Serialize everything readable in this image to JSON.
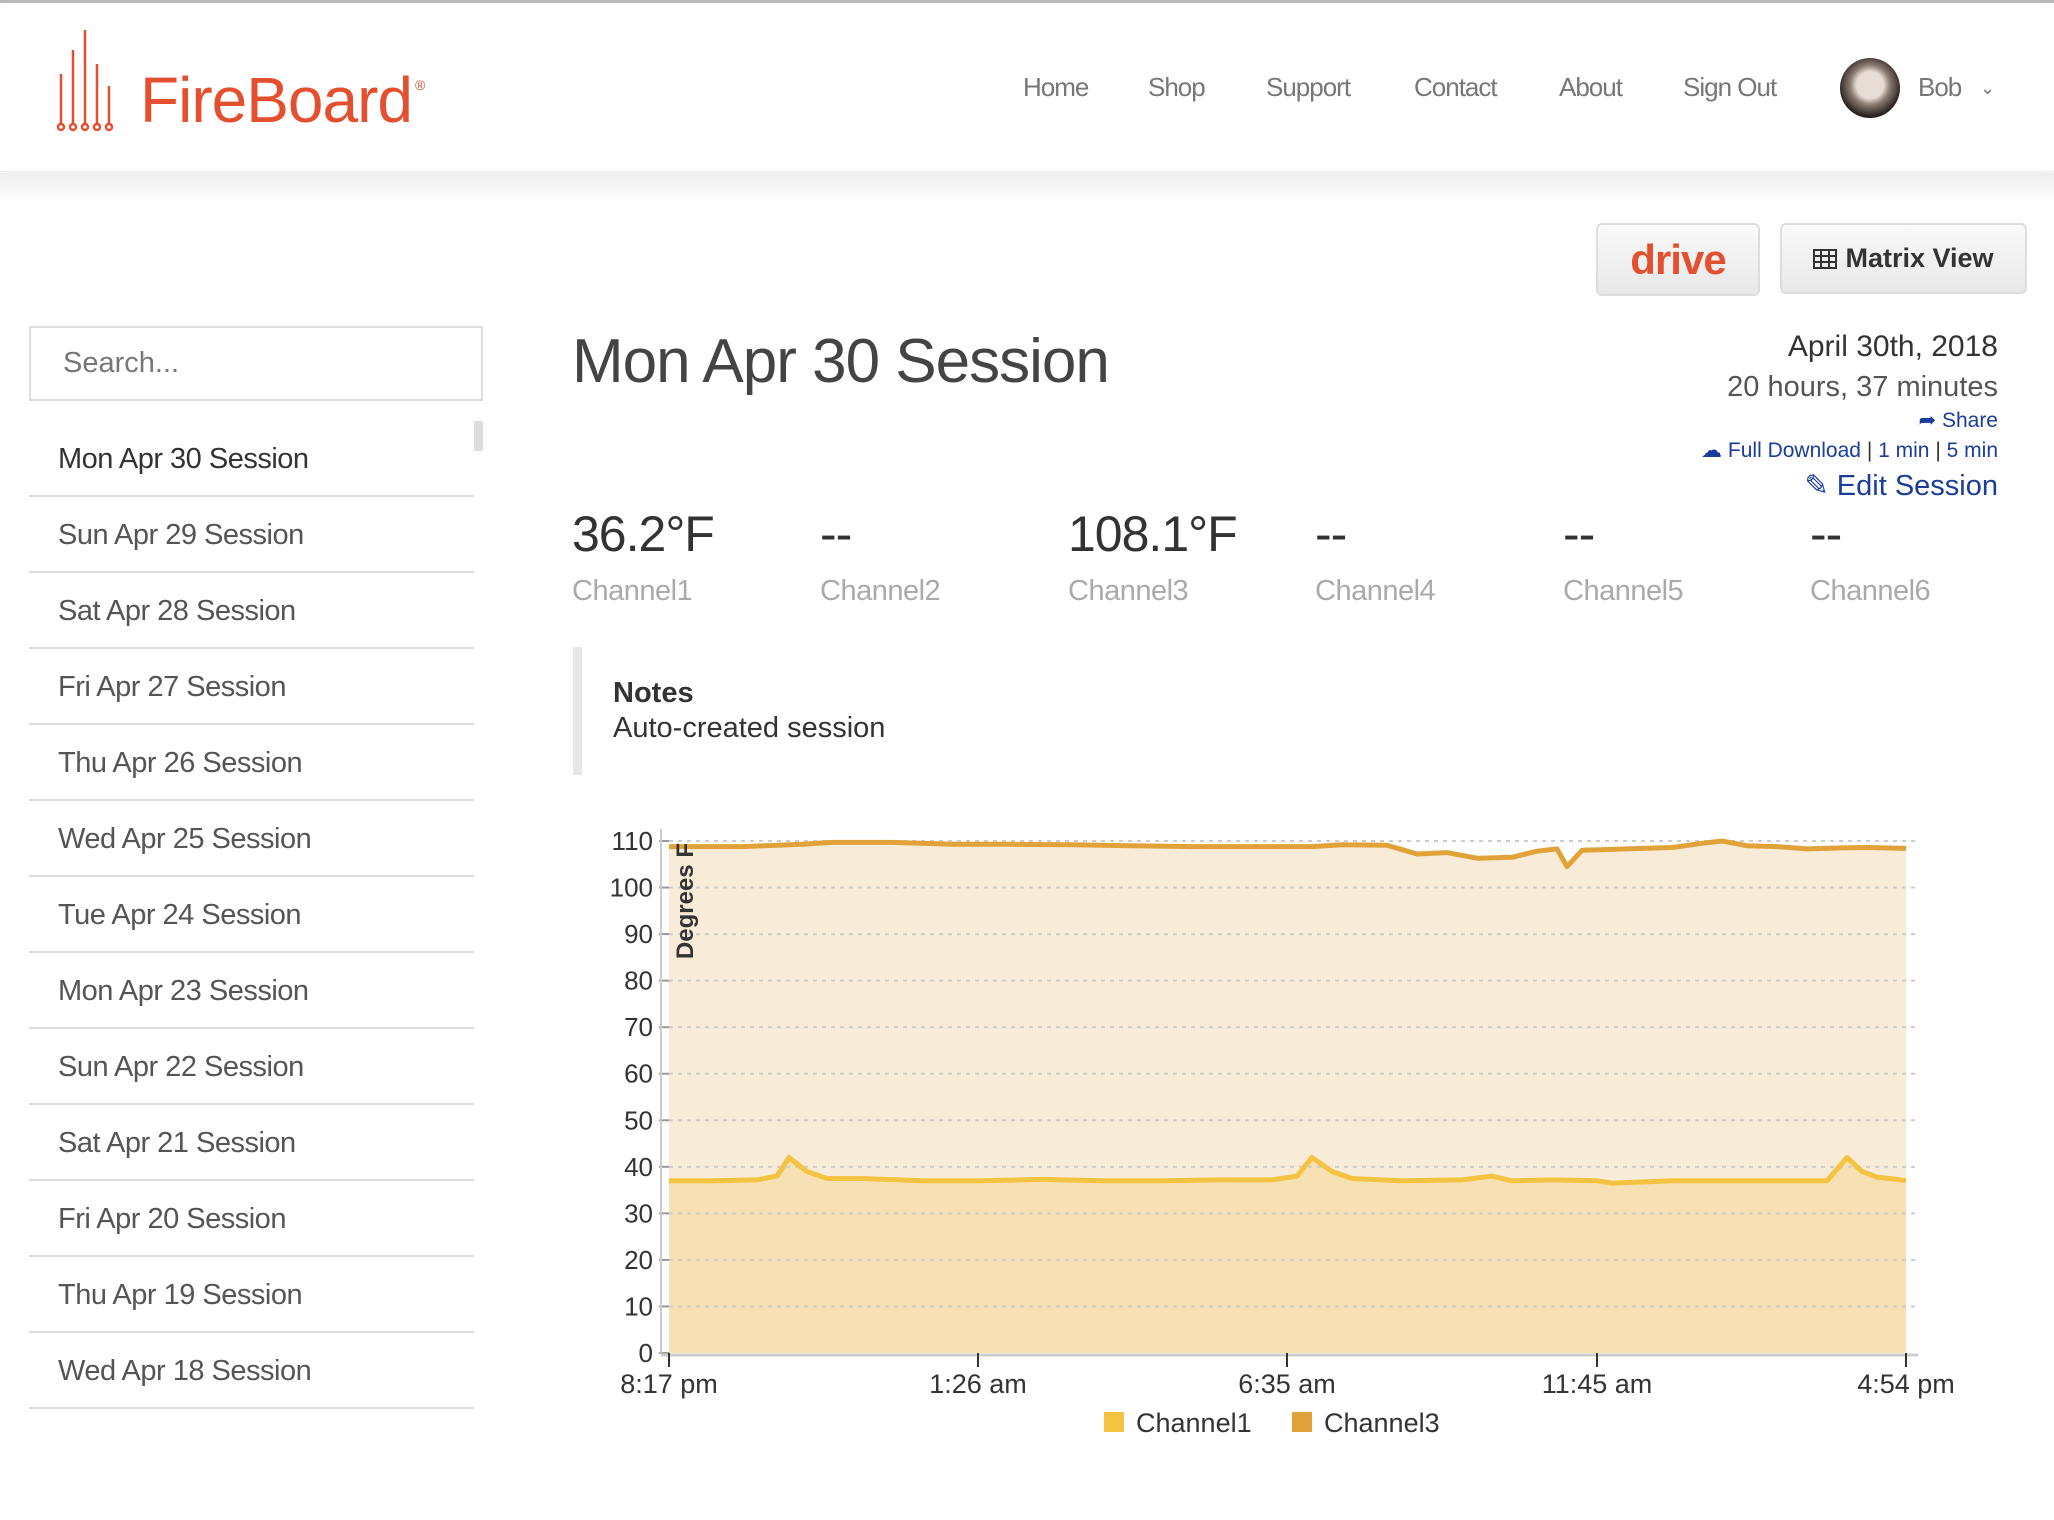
{
  "brand": {
    "name": "FireBoard",
    "registered": "®",
    "color": "#e4502f"
  },
  "nav": {
    "items": [
      "Home",
      "Shop",
      "Support",
      "Contact",
      "About",
      "Sign Out"
    ],
    "user": "Bob"
  },
  "toolbar": {
    "drive_label": "drive",
    "matrix_label": "Matrix View"
  },
  "sidebar": {
    "search_placeholder": "Search...",
    "items": [
      "Mon Apr 30 Session",
      "Sun Apr 29 Session",
      "Sat Apr 28 Session",
      "Fri Apr 27 Session",
      "Thu Apr 26 Session",
      "Wed Apr 25 Session",
      "Tue Apr 24 Session",
      "Mon Apr 23 Session",
      "Sun Apr 22 Session",
      "Sat Apr 21 Session",
      "Fri Apr 20 Session",
      "Thu Apr 19 Session",
      "Wed Apr 18 Session"
    ],
    "active": 0
  },
  "session": {
    "title": "Mon Apr 30 Session",
    "date": "April 30th, 2018",
    "duration": "20 hours, 37 minutes",
    "share": "Share",
    "full_download": "Full Download",
    "sep": "|",
    "one_min": "1 min",
    "five_min": "5 min",
    "edit": "Edit Session",
    "channels": [
      {
        "value": "36.2°F",
        "label": "Channel1"
      },
      {
        "value": "--",
        "label": "Channel2"
      },
      {
        "value": "108.1°F",
        "label": "Channel3"
      },
      {
        "value": "--",
        "label": "Channel4"
      },
      {
        "value": "--",
        "label": "Channel5"
      },
      {
        "value": "--",
        "label": "Channel6"
      }
    ],
    "notes_title": "Notes",
    "notes_text": "Auto-created session"
  },
  "chart_data": {
    "type": "area",
    "ylabel": "Degrees F",
    "ylim": [
      0,
      110
    ],
    "yticks": [
      0,
      10,
      20,
      30,
      40,
      50,
      60,
      70,
      80,
      90,
      100,
      110
    ],
    "xticks": [
      "8:17 pm",
      "1:26 am",
      "6:35 am",
      "11:45 am",
      "4:54 pm"
    ],
    "grid": true,
    "legend": "bottom",
    "series": [
      {
        "name": "Channel1",
        "color": "#f5c342",
        "fill": "#f8e0b5",
        "points": [
          [
            "8:17 pm",
            37
          ],
          [
            "9:00 pm",
            37
          ],
          [
            "9:45 pm",
            37.2
          ],
          [
            "10:05 pm",
            38
          ],
          [
            "10:17 pm",
            42
          ],
          [
            "10:35 pm",
            39
          ],
          [
            "10:55 pm",
            37.5
          ],
          [
            "11:30 pm",
            37.5
          ],
          [
            "12:30 am",
            37
          ],
          [
            "1:30 am",
            37
          ],
          [
            "2:30 am",
            37.3
          ],
          [
            "3:30 am",
            37
          ],
          [
            "4:30 am",
            37
          ],
          [
            "5:30 am",
            37.2
          ],
          [
            "6:20 am",
            37.2
          ],
          [
            "6:45 am",
            38
          ],
          [
            "7:00 am",
            42
          ],
          [
            "7:20 am",
            39
          ],
          [
            "7:40 am",
            37.5
          ],
          [
            "8:30 am",
            37
          ],
          [
            "9:30 am",
            37.2
          ],
          [
            "10:00 am",
            38
          ],
          [
            "10:20 am",
            37
          ],
          [
            "11:00 am",
            37.2
          ],
          [
            "11:45 am",
            37
          ],
          [
            "12:00 pm",
            36.5
          ],
          [
            "1:00 pm",
            37
          ],
          [
            "2:00 pm",
            37
          ],
          [
            "3:00 pm",
            37
          ],
          [
            "3:35 pm",
            37
          ],
          [
            "3:55 pm",
            42
          ],
          [
            "4:10 pm",
            39
          ],
          [
            "4:25 pm",
            37.8
          ],
          [
            "4:45 pm",
            37.3
          ],
          [
            "4:54 pm",
            37
          ]
        ]
      },
      {
        "name": "Channel3",
        "color": "#e2a23a",
        "fill": "#f8ebd8",
        "points": [
          [
            "8:17 pm",
            108.8
          ],
          [
            "9:30 pm",
            108.8
          ],
          [
            "10:30 pm",
            109.3
          ],
          [
            "11:00 pm",
            109.7
          ],
          [
            "12:00 am",
            109.7
          ],
          [
            "1:00 am",
            109.3
          ],
          [
            "2:00 am",
            109.3
          ],
          [
            "3:00 am",
            109.2
          ],
          [
            "4:00 am",
            109
          ],
          [
            "5:00 am",
            108.8
          ],
          [
            "6:00 am",
            108.8
          ],
          [
            "7:00 am",
            108.8
          ],
          [
            "7:30 am",
            109.2
          ],
          [
            "8:15 am",
            109.1
          ],
          [
            "8:45 am",
            107.2
          ],
          [
            "9:15 am",
            107.5
          ],
          [
            "9:45 am",
            106.3
          ],
          [
            "10:20 am",
            106.5
          ],
          [
            "10:45 am",
            107.8
          ],
          [
            "11:05 am",
            108.3
          ],
          [
            "11:15 am",
            104.5
          ],
          [
            "11:30 am",
            108
          ],
          [
            "12:00 pm",
            108.2
          ],
          [
            "12:30 pm",
            108.4
          ],
          [
            "1:00 pm",
            108.6
          ],
          [
            "1:30 pm",
            109.5
          ],
          [
            "1:50 pm",
            110
          ],
          [
            "2:15 pm",
            109
          ],
          [
            "2:45 pm",
            108.8
          ],
          [
            "3:15 pm",
            108.3
          ],
          [
            "3:45 pm",
            108.5
          ],
          [
            "4:15 pm",
            108.6
          ],
          [
            "4:54 pm",
            108.4
          ]
        ]
      }
    ]
  }
}
